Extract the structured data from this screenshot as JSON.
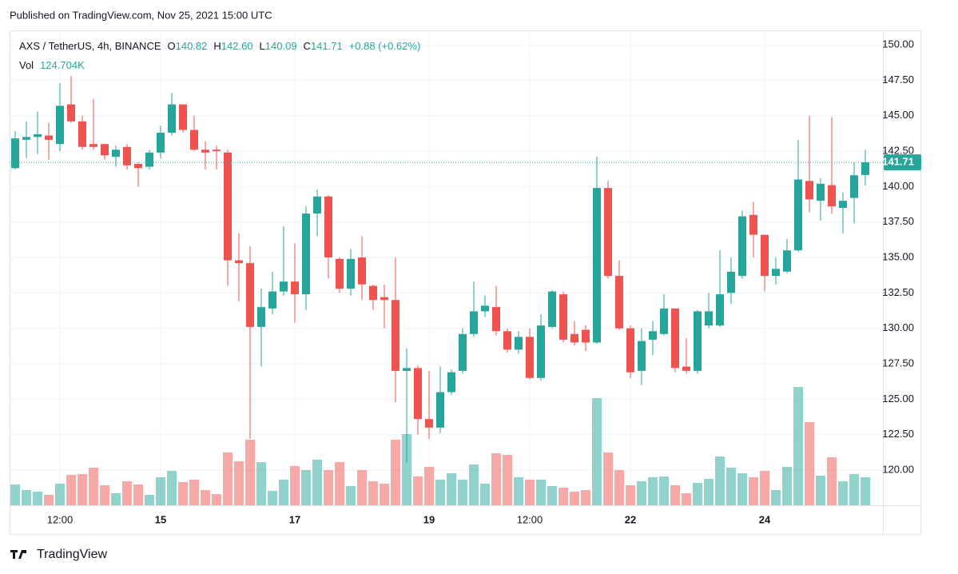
{
  "header": {
    "published": "Published on TradingView.com, Nov 25, 2021 15:00 UTC"
  },
  "footer": {
    "brand": "TradingView"
  },
  "chart_data": {
    "type": "candlestick",
    "legend": {
      "symbol": "AXS / TetherUS, 4h, BINANCE",
      "open_key": "O",
      "high_key": "H",
      "low_key": "L",
      "close_key": "C",
      "open": "140.82",
      "high": "142.60",
      "low": "140.09",
      "close": "141.71",
      "change": "+0.88 (+0.62%)",
      "vol_key": "Vol",
      "vol": "124.704K"
    },
    "last_price_label": "141.71",
    "up_color": "#26a69a",
    "down_color": "#ef5350",
    "categories": [
      null,
      null,
      null,
      null,
      "12:00",
      null,
      null,
      null,
      null,
      null,
      null,
      null,
      null,
      "15",
      null,
      null,
      null,
      null,
      null,
      null,
      null,
      null,
      null,
      null,
      null,
      "17",
      null,
      null,
      null,
      null,
      null,
      null,
      null,
      null,
      null,
      null,
      null,
      "19",
      null,
      null,
      null,
      null,
      null,
      null,
      null,
      null,
      "12:00",
      null,
      null,
      null,
      null,
      null,
      null,
      null,
      null,
      "22",
      null,
      null,
      null,
      null,
      null,
      null,
      null,
      null,
      null,
      null,
      null,
      "24",
      null,
      null,
      null,
      null,
      null,
      null,
      null,
      null,
      null
    ],
    "open": [
      141.3,
      143.3,
      143.5,
      143.6,
      143.0,
      145.8,
      144.6,
      143.0,
      143.0,
      142.1,
      142.8,
      141.6,
      141.4,
      142.4,
      143.8,
      145.8,
      144.0,
      142.6,
      142.6,
      142.4,
      134.8,
      134.6,
      130.1,
      131.4,
      132.6,
      133.3,
      132.4,
      138.1,
      139.3,
      134.9,
      132.8,
      135.0,
      133.0,
      132.2,
      132.0,
      127.0,
      127.2,
      123.6,
      123.0,
      125.5,
      127.0,
      129.6,
      131.2,
      131.5,
      129.8,
      128.5,
      129.4,
      126.5,
      130.1,
      132.4,
      129.6,
      129.9,
      129.0,
      139.9,
      133.7,
      130.0,
      127.0,
      129.2,
      129.6,
      131.4,
      127.3,
      127.0,
      130.2,
      130.2,
      132.5,
      133.7,
      138.0,
      136.6,
      133.7,
      134.0,
      135.5,
      140.4,
      139.0,
      140.1,
      138.5,
      139.2,
      140.82
    ],
    "high": [
      143.9,
      144.6,
      145.3,
      144.5,
      147.3,
      147.8,
      145.0,
      146.2,
      143.0,
      142.9,
      143.0,
      141.7,
      142.6,
      144.3,
      146.6,
      145.8,
      145.0,
      143.2,
      142.9,
      142.6,
      136.7,
      135.8,
      132.8,
      134.0,
      137.2,
      136.0,
      138.6,
      139.8,
      139.4,
      135.0,
      135.6,
      136.5,
      133.1,
      133.1,
      135.0,
      128.6,
      127.4,
      127.0,
      127.3,
      127.1,
      130.0,
      133.3,
      132.3,
      133.0,
      130.0,
      129.8,
      130.0,
      131.0,
      132.7,
      132.6,
      130.5,
      130.2,
      142.1,
      140.4,
      134.8,
      130.2,
      130.0,
      130.5,
      132.4,
      131.4,
      129.3,
      131.3,
      132.5,
      135.5,
      135.0,
      138.3,
      138.9,
      136.6,
      135.0,
      136.3,
      143.3,
      145.0,
      140.6,
      144.9,
      139.6,
      141.7,
      142.6
    ],
    "low": [
      141.2,
      142.0,
      142.3,
      141.9,
      142.5,
      144.5,
      142.6,
      142.6,
      141.9,
      141.4,
      141.2,
      140.0,
      141.2,
      142.0,
      143.6,
      143.8,
      142.5,
      141.2,
      141.2,
      133.0,
      131.9,
      122.2,
      127.3,
      131.0,
      132.3,
      130.4,
      131.3,
      136.5,
      133.5,
      132.5,
      132.3,
      132.0,
      131.3,
      130.0,
      124.8,
      120.5,
      122.5,
      122.2,
      122.6,
      125.3,
      126.8,
      129.4,
      130.8,
      129.5,
      128.3,
      128.2,
      126.4,
      126.3,
      130.0,
      129.0,
      128.8,
      128.4,
      128.9,
      133.5,
      129.9,
      126.5,
      126.0,
      128.1,
      129.5,
      126.9,
      126.8,
      126.8,
      130.0,
      130.1,
      131.7,
      133.5,
      135.0,
      132.6,
      133.1,
      133.9,
      135.4,
      138.2,
      137.6,
      138.1,
      136.7,
      137.4,
      140.09
    ],
    "close": [
      143.4,
      143.5,
      143.7,
      143.3,
      145.7,
      144.6,
      142.8,
      142.8,
      142.2,
      142.6,
      141.5,
      141.3,
      142.4,
      143.8,
      145.8,
      144.0,
      142.6,
      142.4,
      142.5,
      134.8,
      134.6,
      130.1,
      131.5,
      132.6,
      133.3,
      132.4,
      138.1,
      139.3,
      135.0,
      132.8,
      134.9,
      133.1,
      132.0,
      132.0,
      127.0,
      127.2,
      123.6,
      123.0,
      125.5,
      126.9,
      129.6,
      131.2,
      131.6,
      129.8,
      128.5,
      129.4,
      126.5,
      130.2,
      132.6,
      129.2,
      129.0,
      129.0,
      139.9,
      133.7,
      130.0,
      126.9,
      129.1,
      129.8,
      131.4,
      127.2,
      127.0,
      131.2,
      131.2,
      132.4,
      134.0,
      137.9,
      136.6,
      133.7,
      134.2,
      135.5,
      140.5,
      139.1,
      140.2,
      138.6,
      139.0,
      140.8,
      141.71
    ],
    "volume": [
      92600,
      67700,
      60600,
      46300,
      96200,
      135400,
      139000,
      167500,
      89100,
      53400,
      106900,
      92600,
      46300,
      124700,
      153200,
      103300,
      114000,
      67700,
      49900,
      235200,
      196000,
      292200,
      192400,
      64100,
      114000,
      174600,
      156800,
      203100,
      156800,
      192400,
      85500,
      156800,
      106900,
      96200,
      292200,
      317100,
      128300,
      171000,
      114000,
      142500,
      114000,
      181700,
      96200,
      231600,
      224500,
      124700,
      114000,
      114000,
      85500,
      78400,
      60600,
      67700,
      477400,
      235200,
      156800,
      89100,
      106900,
      124700,
      128300,
      89100,
      53400,
      99800,
      117600,
      217300,
      167500,
      142500,
      124700,
      153200,
      67700,
      171000,
      527300,
      370600,
      131800,
      213800,
      106900,
      139000,
      124704
    ],
    "ylim": [
      117.52,
      151.02
    ],
    "yticks": [
      {
        "value": 120,
        "label": "120.00"
      },
      {
        "value": 122.5,
        "label": "122.50"
      },
      {
        "value": 125,
        "label": "125.00"
      },
      {
        "value": 127.5,
        "label": "127.50"
      },
      {
        "value": 130,
        "label": "130.00"
      },
      {
        "value": 132.5,
        "label": "132.50"
      },
      {
        "value": 135,
        "label": "135.00"
      },
      {
        "value": 137.5,
        "label": "137.50"
      },
      {
        "value": 140,
        "label": "140.00"
      },
      {
        "value": 142.5,
        "label": "142.50"
      },
      {
        "value": 145,
        "label": "145.00"
      },
      {
        "value": 147.5,
        "label": "147.50"
      },
      {
        "value": 150,
        "label": "150.00"
      }
    ],
    "grid": true
  }
}
